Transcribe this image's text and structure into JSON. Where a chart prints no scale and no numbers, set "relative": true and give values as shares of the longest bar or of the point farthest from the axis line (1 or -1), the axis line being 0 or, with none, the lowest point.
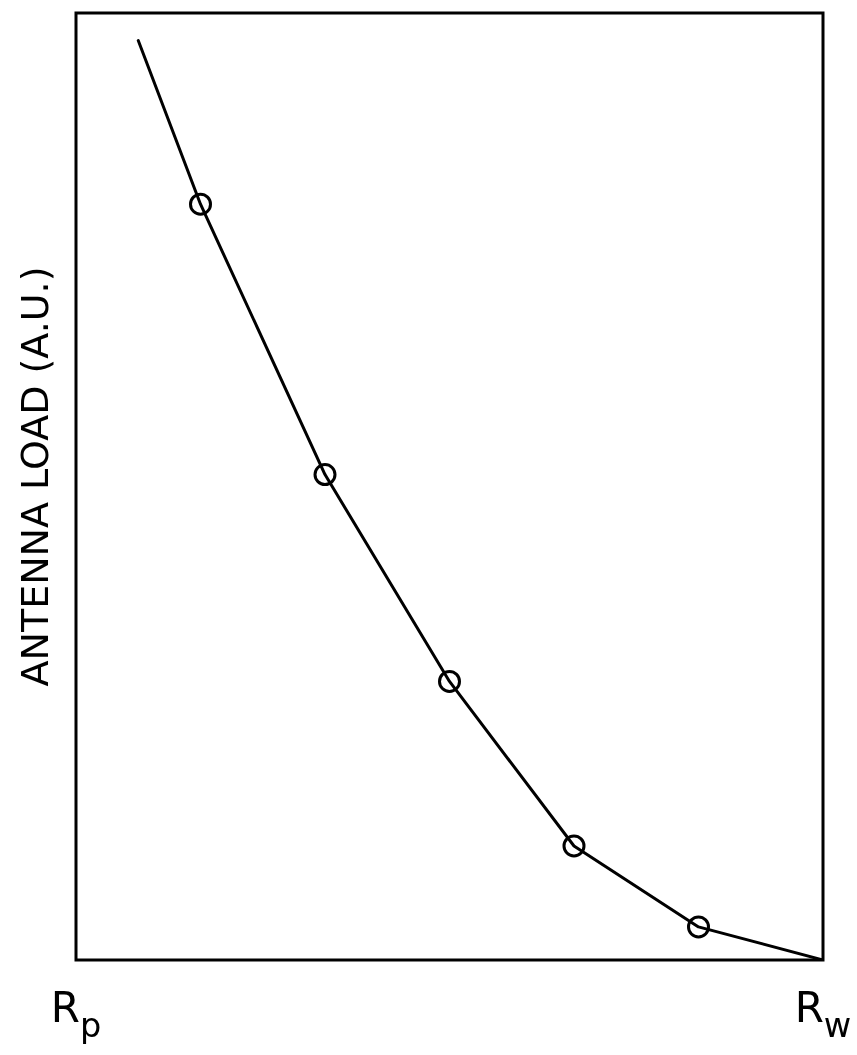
{
  "chart_data": {
    "type": "line",
    "ylabel": "ANTENNA LOAD (A.U.)",
    "relative": true,
    "categories": [
      "R$_{p}$",
      null,
      null,
      null,
      null,
      null,
      null,
      null,
      null,
      null,
      null,
      null,
      "R$_{w}$"
    ],
    "tick_labels": "x",
    "legend": false,
    "series": [
      {
        "color": "#000000",
        "marker": "none",
        "values": [
          null,
          1,
          0.822,
          null,
          0.528,
          null,
          0.303,
          null,
          0.124,
          null,
          0.036,
          null,
          0
        ]
      },
      {
        "type": "scatter",
        "color": "#000000",
        "marker": "circle",
        "values": [
          null,
          null,
          0.822,
          null,
          0.528,
          null,
          0.303,
          null,
          0.124,
          null,
          0.036,
          null,
          null
        ]
      }
    ]
  }
}
